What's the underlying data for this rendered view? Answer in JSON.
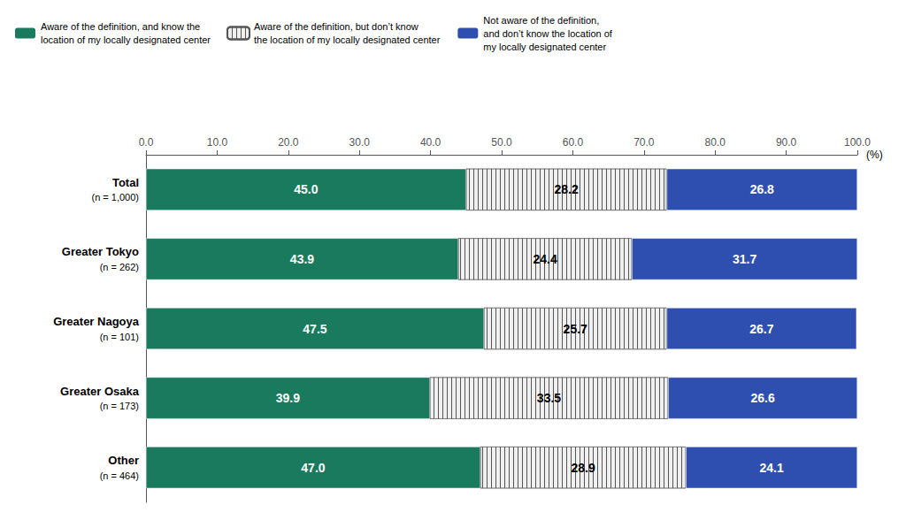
{
  "chart_data": {
    "type": "bar",
    "orientation": "horizontal",
    "stacked": true,
    "categories": [
      "Total\n(n = 1,000)",
      "Greater Tokyo\n(n = 262)",
      "Greater Nagoya\n(n = 101)",
      "Greater Osaka\n(n = 173)",
      "Other\n(n = 464)"
    ],
    "series": [
      {
        "name": "Aware of the definition, and know the\nlocation of my locally designated center",
        "color": "#1a7a5e",
        "values": [
          45.0,
          43.9,
          47.5,
          39.9,
          47.0
        ],
        "value_labels": [
          "45.0",
          "43.9",
          "47.5",
          "39.9",
          "47.0"
        ]
      },
      {
        "name": "Aware of the definition, but don’t know\nthe location of my locally designated center",
        "color": "#f0f0f0",
        "values": [
          28.2,
          24.4,
          25.7,
          33.5,
          28.9
        ],
        "value_labels": [
          "28.2",
          "24.4",
          "25.7",
          "33.5",
          "28.9"
        ]
      },
      {
        "name": "Not aware of the definition,\nand don’t know the location of\nmy locally designated center",
        "color": "#2e4faf",
        "values": [
          26.8,
          31.7,
          26.7,
          26.6,
          24.1
        ],
        "value_labels": [
          "26.8",
          "31.7",
          "26.7",
          "26.6",
          "24.1"
        ]
      }
    ],
    "xlabel": "(%)",
    "xlim": [
      0,
      100
    ],
    "xticks": [
      {
        "value": 0,
        "label": "0.0"
      },
      {
        "value": 10,
        "label": "10.0"
      },
      {
        "value": 20,
        "label": "20.0"
      },
      {
        "value": 30,
        "label": "30.0"
      },
      {
        "value": 40,
        "label": "40.0"
      },
      {
        "value": 50,
        "label": "50.0"
      },
      {
        "value": 60,
        "label": "60.0"
      },
      {
        "value": 70,
        "label": "70.0"
      },
      {
        "value": 80,
        "label": "80.0"
      },
      {
        "value": 90,
        "label": "90.0"
      },
      {
        "value": 100,
        "label": "100.0"
      }
    ],
    "data_labels": true,
    "grid": false,
    "legend": "top"
  }
}
